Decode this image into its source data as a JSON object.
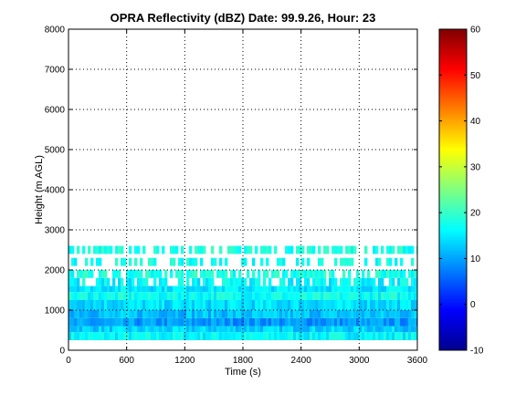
{
  "chart_data": {
    "type": "heatmap",
    "title": "OPRA Reflectivity (dBZ)  Date: 99.9.26, Hour: 23",
    "xlabel": "Time (s)",
    "ylabel": "Height (m AGL)",
    "xlim": [
      0,
      3600
    ],
    "ylim": [
      0,
      8000
    ],
    "xticks": [
      0,
      600,
      1200,
      1800,
      2400,
      3000,
      3600
    ],
    "xtick_labels": [
      "0",
      "600",
      "1200",
      "1800",
      "2400",
      "3000",
      "3600"
    ],
    "yticks": [
      0,
      1000,
      2000,
      3000,
      4000,
      5000,
      6000,
      7000,
      8000
    ],
    "ytick_labels": [
      "0",
      "1000",
      "2000",
      "3000",
      "4000",
      "5000",
      "6000",
      "7000",
      "8000"
    ],
    "grid": true,
    "colorbar": {
      "colormap": "jet",
      "range": [
        -10,
        60
      ],
      "ticks": [
        -10,
        0,
        10,
        20,
        30,
        40,
        50,
        60
      ],
      "tick_labels": [
        "-10",
        "0",
        "10",
        "20",
        "30",
        "40",
        "50",
        "60"
      ]
    },
    "layers": [
      {
        "y0": 250,
        "y1": 450,
        "dbz": 16
      },
      {
        "y0": 450,
        "y1": 600,
        "dbz": 13
      },
      {
        "y0": 600,
        "y1": 800,
        "dbz": 9
      },
      {
        "y0": 800,
        "y1": 1000,
        "dbz": 12
      },
      {
        "y0": 1000,
        "y1": 1250,
        "dbz": 14
      },
      {
        "y0": 1250,
        "y1": 1450,
        "dbz": 17
      },
      {
        "y0": 1450,
        "y1": 1600,
        "dbz": 15
      },
      {
        "y0": 1600,
        "y1": 1800,
        "dbz": 16
      },
      {
        "y0": 1800,
        "y1": 2000,
        "dbz": 18
      },
      {
        "y0": 2100,
        "y1": 2300,
        "dbz": 17
      },
      {
        "y0": 2400,
        "y1": 2600,
        "dbz": 18
      }
    ]
  }
}
